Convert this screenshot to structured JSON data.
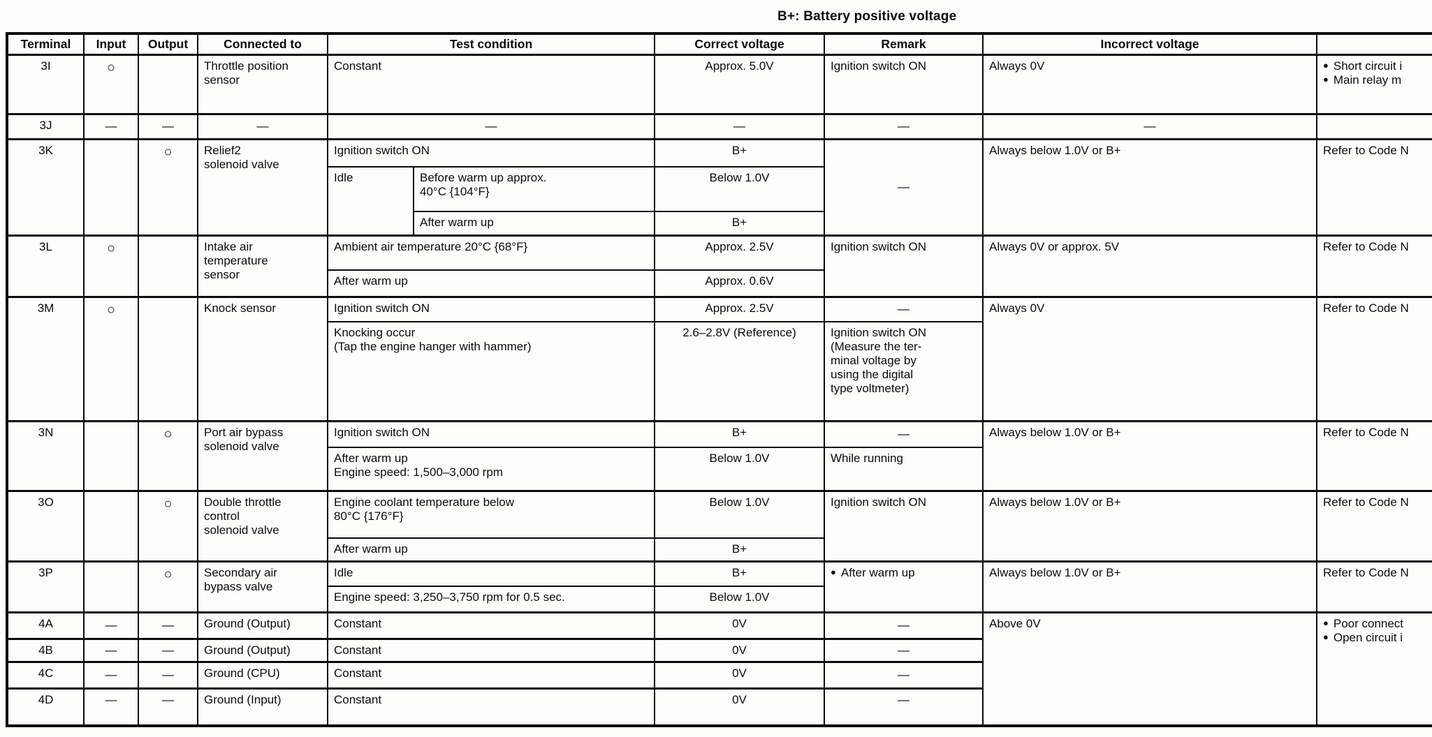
{
  "title": "B+: Battery positive voltage",
  "marks": {
    "circle": "○",
    "dash": "—",
    "bullet": "●"
  },
  "header": {
    "terminal": "Terminal",
    "input": "Input",
    "output": "Output",
    "connected_to": "Connected to",
    "test_condition": "Test condition",
    "correct_voltage": "Correct voltage",
    "remark": "Remark",
    "incorrect_voltage": "Incorrect voltage",
    "notes": ""
  },
  "rows": {
    "t3i": {
      "terminal": "3I",
      "input": "○",
      "connected": [
        "Throttle position",
        "sensor"
      ],
      "condition": "Constant",
      "voltage": "Approx. 5.0V",
      "remark": "Ignition switch ON",
      "incorrect": "Always 0V",
      "notes": [
        "Short circuit i",
        "Main relay m"
      ]
    },
    "t3j": {
      "terminal": "3J",
      "input": "—",
      "output": "—",
      "connected": "—",
      "condition": "—",
      "voltage": "—",
      "remark": "—",
      "incorrect": "—"
    },
    "t3k": {
      "terminal": "3K",
      "output": "○",
      "connected": [
        "Relief2",
        "solenoid valve"
      ],
      "cond1": "Ignition switch ON",
      "volt1": "B+",
      "idle": "Idle",
      "cond2": [
        "Before warm up approx.",
        "40°C {104°F}"
      ],
      "volt2": "Below 1.0V",
      "cond3": "After warm up",
      "volt3": "B+",
      "remark": "—",
      "incorrect": "Always below 1.0V or B+",
      "notes": "Refer to Code N"
    },
    "t3l": {
      "terminal": "3L",
      "input": "○",
      "connected": [
        "Intake air",
        "temperature",
        "sensor"
      ],
      "cond1": "Ambient air temperature 20°C {68°F}",
      "volt1": "Approx. 2.5V",
      "cond2": "After warm up",
      "volt2": "Approx. 0.6V",
      "remark": "Ignition switch ON",
      "incorrect": "Always 0V or approx. 5V",
      "notes": "Refer to Code N"
    },
    "t3m": {
      "terminal": "3M",
      "input": "○",
      "connected": "Knock sensor",
      "cond1": "Ignition switch ON",
      "volt1": "Approx. 2.5V",
      "remark1": "—",
      "cond2": [
        "Knocking occur",
        "(Tap the engine hanger with hammer)"
      ],
      "volt2": "2.6–2.8V (Reference)",
      "remark2": [
        "Ignition switch ON",
        "(Measure the ter-",
        "minal voltage by",
        "using the digital",
        "type voltmeter)"
      ],
      "incorrect": "Always 0V",
      "notes": "Refer to Code N"
    },
    "t3n": {
      "terminal": "3N",
      "output": "○",
      "connected": [
        "Port air bypass",
        "solenoid valve"
      ],
      "cond1": "Ignition switch ON",
      "volt1": "B+",
      "remark1": "—",
      "cond2": [
        "After warm up",
        "Engine speed: 1,500–3,000 rpm"
      ],
      "volt2": "Below 1.0V",
      "remark2": "While running",
      "incorrect": "Always below 1.0V or B+",
      "notes": "Refer to Code N"
    },
    "t3o": {
      "terminal": "3O",
      "output": "○",
      "connected": [
        "Double throttle",
        "control",
        "solenoid valve"
      ],
      "cond1": [
        "Engine coolant temperature below",
        "80°C {176°F}"
      ],
      "volt1": "Below 1.0V",
      "cond2": "After warm up",
      "volt2": "B+",
      "remark": "Ignition switch ON",
      "incorrect": "Always below 1.0V or B+",
      "notes": "Refer to Code N"
    },
    "t3p": {
      "terminal": "3P",
      "output": "○",
      "connected": [
        "Secondary air",
        "bypass valve"
      ],
      "cond1": "Idle",
      "volt1": "B+",
      "cond2": "Engine speed: 3,250–3,750 rpm for 0.5 sec.",
      "volt2": "Below 1.0V",
      "remark": "After warm up",
      "incorrect": "Always below 1.0V or B+",
      "notes": "Refer to Code N"
    },
    "t4a": {
      "terminal": "4A",
      "input": "—",
      "output": "—",
      "connected": "Ground (Output)",
      "condition": "Constant",
      "voltage": "0V",
      "remark": "—",
      "incorrect": "Above 0V",
      "notes": [
        "Poor connect",
        "Open circuit i"
      ]
    },
    "t4b": {
      "terminal": "4B",
      "input": "—",
      "output": "—",
      "connected": "Ground (Output)",
      "condition": "Constant",
      "voltage": "0V",
      "remark": "—"
    },
    "t4c": {
      "terminal": "4C",
      "input": "—",
      "output": "—",
      "connected": "Ground (CPU)",
      "condition": "Constant",
      "voltage": "0V",
      "remark": "—"
    },
    "t4d": {
      "terminal": "4D",
      "input": "—",
      "output": "—",
      "connected": "Ground (Input)",
      "condition": "Constant",
      "voltage": "0V",
      "remark": "—"
    }
  }
}
